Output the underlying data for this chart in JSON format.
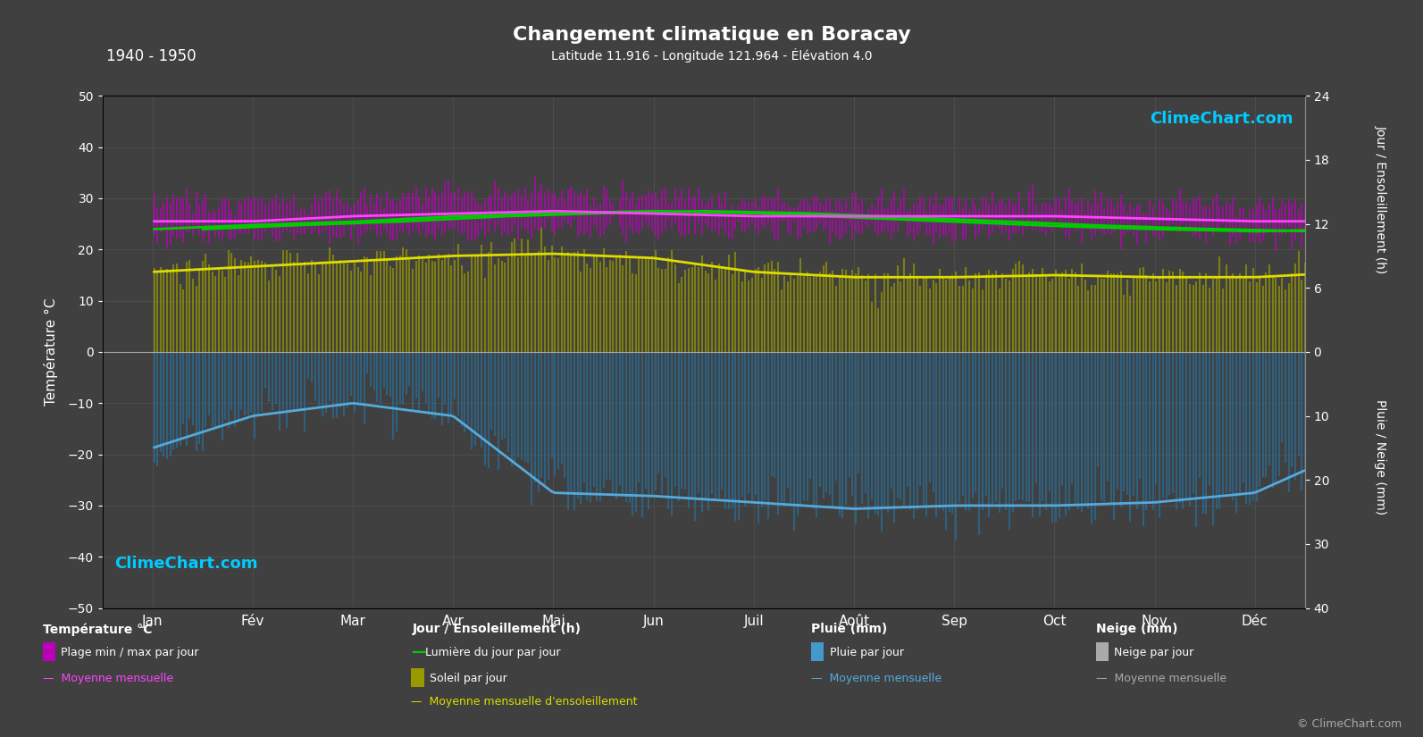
{
  "title": "Changement climatique en Boracay",
  "subtitle": "Latitude 11.916 - Longitude 121.964 - Élévation 4.0",
  "period": "1940 - 1950",
  "background_color": "#404040",
  "plot_bg_color": "#404040",
  "months": [
    "Jan",
    "Fév",
    "Mar",
    "Avr",
    "Mai",
    "Jun",
    "Juil",
    "Août",
    "Sep",
    "Oct",
    "Nov",
    "Déc"
  ],
  "temp_ylim": [
    -50,
    50
  ],
  "temp_min_monthly": [
    22.5,
    22.5,
    23.0,
    23.5,
    24.0,
    24.0,
    23.5,
    23.5,
    23.5,
    23.5,
    23.0,
    22.5
  ],
  "temp_max_monthly": [
    29.0,
    29.5,
    30.0,
    31.0,
    31.0,
    30.5,
    29.5,
    29.5,
    29.5,
    29.5,
    29.0,
    29.0
  ],
  "temp_mean_monthly": [
    25.5,
    25.5,
    26.5,
    27.0,
    27.5,
    27.0,
    26.5,
    26.5,
    26.5,
    26.5,
    26.0,
    25.5
  ],
  "daylight_monthly": [
    11.5,
    11.9,
    12.2,
    12.7,
    13.0,
    13.2,
    13.0,
    12.6,
    12.2,
    11.8,
    11.5,
    11.3
  ],
  "sunshine_daily_monthly": [
    7.5,
    8.0,
    8.5,
    9.0,
    9.2,
    8.8,
    7.5,
    7.0,
    7.0,
    7.2,
    7.0,
    7.0
  ],
  "sunshine_mean_monthly": [
    7.5,
    8.0,
    8.5,
    9.0,
    9.2,
    8.8,
    7.5,
    7.0,
    7.0,
    7.2,
    7.0,
    7.0
  ],
  "rain_daily_monthly": [
    15.0,
    10.0,
    8.0,
    10.0,
    22.0,
    22.5,
    23.5,
    24.5,
    24.0,
    24.0,
    23.5,
    22.0
  ],
  "rain_mean_monthly": [
    15.0,
    10.0,
    8.0,
    10.0,
    22.0,
    22.5,
    23.5,
    24.5,
    24.0,
    24.0,
    23.5,
    22.0
  ],
  "temp_noise_std": 1.2,
  "sun_noise_std": 0.8,
  "rain_noise_std": 2.0,
  "sun_scale": 2.083,
  "rain_scale": 1.25,
  "left_ylabel": "Température °C",
  "right_ylabel1": "Jour / Ensoleillement (h)",
  "right_ylabel2": "Pluie / Neige (mm)",
  "color_temp_bar": "#bb00bb",
  "color_temp_mean": "#ff44ff",
  "color_daylight": "#00cc00",
  "color_sunshine_bar": "#999900",
  "color_sunshine_mean": "#dddd00",
  "color_rain_bar": "#2277aa",
  "color_rain_mean": "#55aadd",
  "color_bg": "#404040",
  "color_grid": "#5a5a5a",
  "color_text": "#ffffff",
  "color_watermark": "#00ccff",
  "color_copyright": "#aaaaaa",
  "legend_temp_header": "Température °C",
  "legend_sun_header": "Jour / Ensoleillement (h)",
  "legend_rain_header": "Pluie (mm)",
  "legend_snow_header": "Neige (mm)",
  "legend_temp_bar": "Plage min / max par jour",
  "legend_temp_mean": "Moyenne mensuelle",
  "legend_daylight": "Lumière du jour par jour",
  "legend_sun_bar": "Soleil par jour",
  "legend_sun_mean": "Moyenne mensuelle d'ensoleillement",
  "legend_rain_bar": "Pluie par jour",
  "legend_rain_mean": "Moyenne mensuelle",
  "legend_snow_bar": "Neige par jour",
  "legend_snow_mean": "Moyenne mensuelle"
}
